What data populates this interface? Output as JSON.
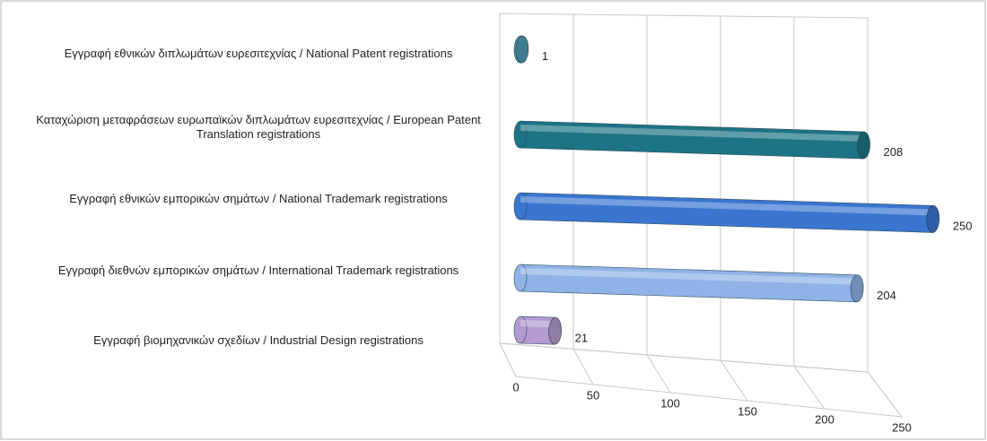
{
  "chart_data": {
    "type": "bar",
    "orientation": "horizontal",
    "categories": [
      "Εγγραφή  εθνικών διπλωμάτων ευρεσιτεχνίας / National Patent registrations",
      "Καταχώριση μεταφράσεων ευρωπαϊκών διπλωμάτων ευρεσιτεχνίας / European Patent Translation registrations",
      "Εγγραφή  εθνικών εμπορικών σημάτων / National Trademark registrations",
      "Εγγραφή  διεθνών εμπορικών σημάτων / International Trademark registrations",
      "Εγγραφή  βιομηχανικών σχεδίων / Industrial Design registrations"
    ],
    "values": [
      1,
      208,
      250,
      204,
      21
    ],
    "colors": [
      "#4f9db3",
      "#1d7485",
      "#3a76d0",
      "#8fb3e6",
      "#b39bd0"
    ],
    "xlim": [
      0,
      250
    ],
    "xticks": [
      0,
      50,
      100,
      150,
      200,
      250
    ],
    "grid": true
  }
}
